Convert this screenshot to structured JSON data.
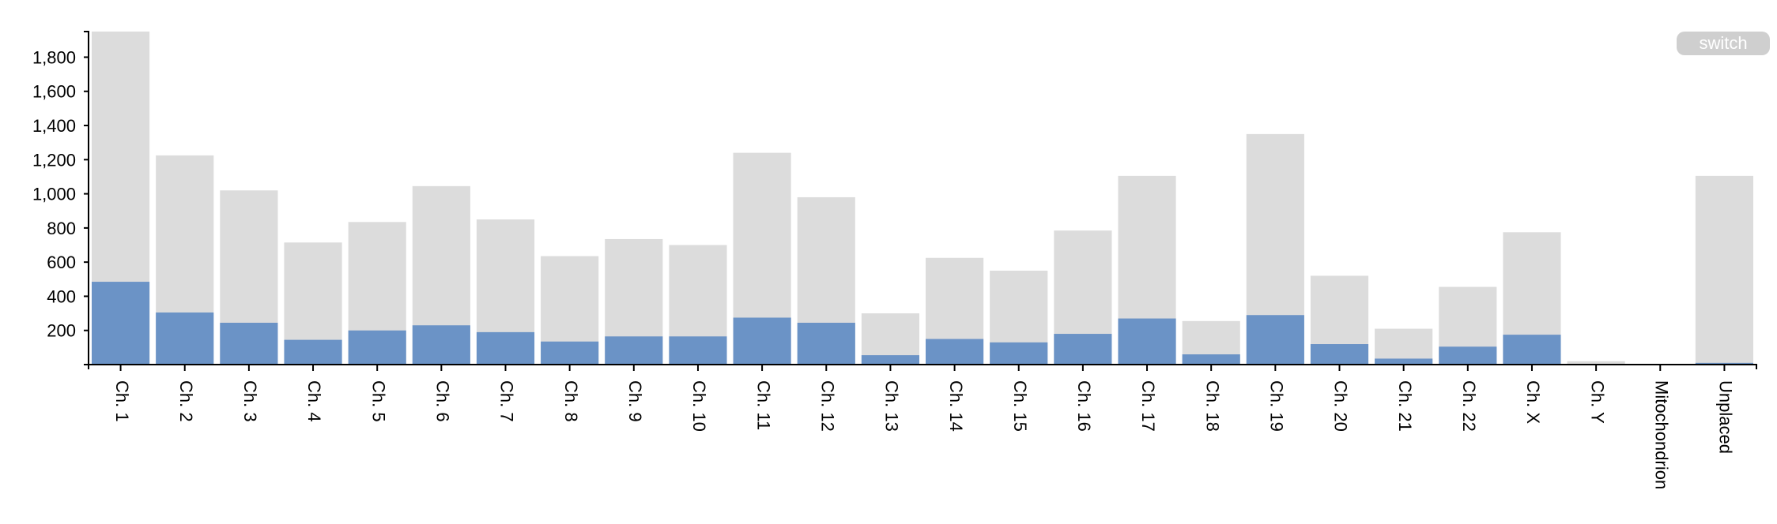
{
  "controls": {
    "switch_label": "switch"
  },
  "colors": {
    "total": "#dcdcdc",
    "subset": "#6b93c6",
    "axis": "#000000"
  },
  "chart_data": {
    "type": "bar",
    "stacked": "overlay",
    "categories": [
      "Ch. 1",
      "Ch. 2",
      "Ch. 3",
      "Ch. 4",
      "Ch. 5",
      "Ch. 6",
      "Ch. 7",
      "Ch. 8",
      "Ch. 9",
      "Ch. 10",
      "Ch. 11",
      "Ch. 12",
      "Ch. 13",
      "Ch. 14",
      "Ch. 15",
      "Ch. 16",
      "Ch. 17",
      "Ch. 18",
      "Ch. 19",
      "Ch. 20",
      "Ch. 21",
      "Ch. 22",
      "Ch. X",
      "Ch. Y",
      "Mitochondrion",
      "Unplaced"
    ],
    "series": [
      {
        "values": [
          1950,
          1225,
          1020,
          715,
          835,
          1045,
          850,
          635,
          735,
          700,
          1240,
          980,
          300,
          625,
          550,
          785,
          1105,
          255,
          1350,
          520,
          210,
          455,
          775,
          20,
          0,
          1105
        ]
      },
      {
        "values": [
          485,
          305,
          245,
          145,
          200,
          230,
          190,
          135,
          165,
          165,
          275,
          245,
          55,
          150,
          130,
          180,
          270,
          60,
          290,
          120,
          35,
          105,
          175,
          3,
          0,
          10
        ]
      }
    ],
    "yticks": [
      200,
      400,
      600,
      800,
      1000,
      1200,
      1400,
      1600,
      1800
    ],
    "ytick_labels": [
      "200",
      "400",
      "600",
      "800",
      "1,000",
      "1,200",
      "1,400",
      "1,600",
      "1,800"
    ],
    "ylim": [
      0,
      1950
    ],
    "xlabel": "",
    "ylabel": "",
    "title": "",
    "grid": false,
    "legend": "none"
  }
}
